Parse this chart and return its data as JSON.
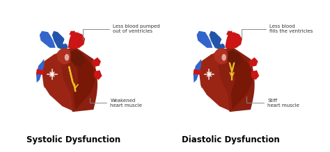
{
  "background_color": "#ffffff",
  "left_title": "Systolic Dysfunction",
  "right_title": "Diastolic Dysfunction",
  "left_label1": "Less blood pumped\nout of ventricles",
  "left_label2": "Weakened\nheart muscle",
  "right_label1": "Less blood\nfills the ventricles",
  "right_label2": "Stiff\nheart muscle",
  "title_fontsize": 8.5,
  "label_fontsize": 5.0,
  "red_dark": "#7B1515",
  "red_mid": "#9B2020",
  "red_bright": "#CC1111",
  "red_vessel": "#CC1515",
  "blue_dark": "#2255AA",
  "blue_mid": "#3366CC",
  "brown_dark": "#5C1A0A",
  "inner_dark": "#6B1A10",
  "yellow": "#E8C020",
  "white": "#FFFFFF",
  "offwhite": "#F0E8E0"
}
